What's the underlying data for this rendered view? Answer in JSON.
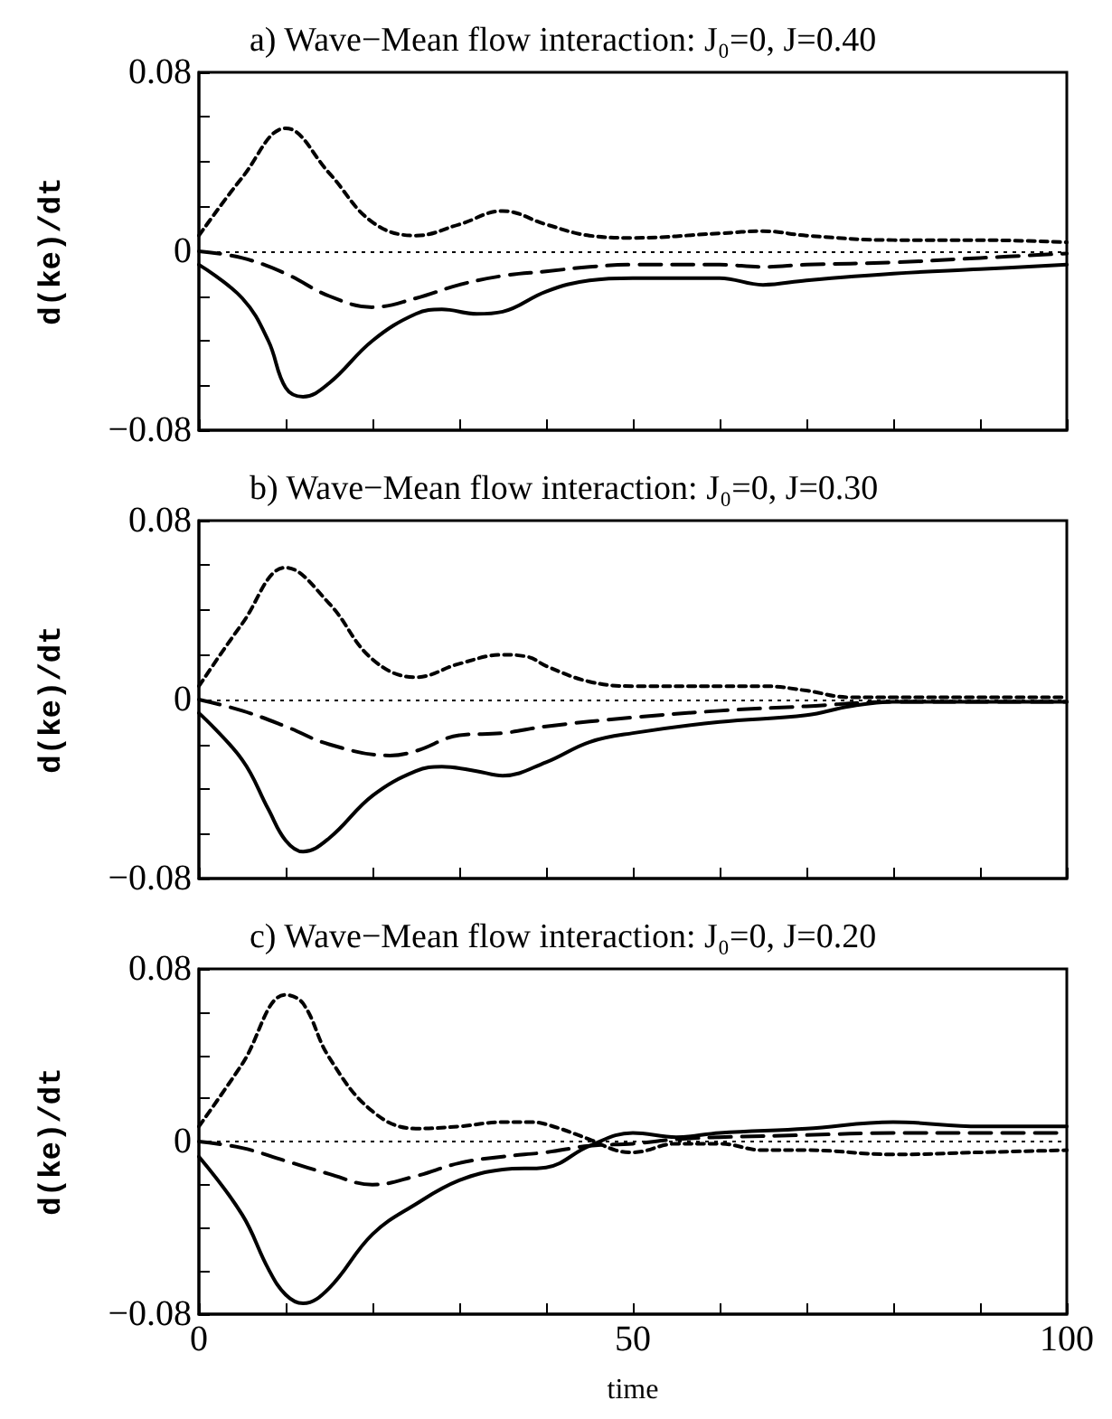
{
  "chart_data": [
    {
      "type": "line",
      "title": "a) Wave−Mean flow interaction: J₀=0, J=0.40",
      "ylabel": "d(ke)/dt",
      "tick_labels": "y",
      "xlim": [
        0,
        100
      ],
      "ylim": [
        -0.08,
        0.08
      ],
      "xticks": [
        {
          "value": 0,
          "label": null
        },
        {
          "value": 10,
          "label": null
        },
        {
          "value": 20,
          "label": null
        },
        {
          "value": 30,
          "label": null
        },
        {
          "value": 40,
          "label": null
        },
        {
          "value": 50,
          "label": null
        },
        {
          "value": 60,
          "label": null
        },
        {
          "value": 70,
          "label": null
        },
        {
          "value": 80,
          "label": null
        },
        {
          "value": 90,
          "label": null
        },
        {
          "value": 100,
          "label": null
        }
      ],
      "yticks": [
        -0.08,
        {
          "value": -0.06,
          "label": null
        },
        {
          "value": -0.04,
          "label": null
        },
        {
          "value": -0.02,
          "label": null
        },
        0,
        {
          "value": 0.02,
          "label": null
        },
        {
          "value": 0.04,
          "label": null
        },
        {
          "value": 0.06,
          "label": null
        },
        0.08
      ],
      "grid": false,
      "marker": "none",
      "ref_lines": [
        {
          "axis": "y",
          "value": 0,
          "color": "#000000",
          "line_style": "dotted"
        }
      ],
      "series": [
        {
          "color": "#000000",
          "line_style": "solid",
          "x": [
            0,
            5,
            8,
            10,
            12,
            15,
            20,
            25,
            28,
            32,
            35,
            40,
            45,
            50,
            60,
            65,
            70,
            80,
            90,
            100
          ],
          "values": [
            -0.006,
            -0.021,
            -0.04,
            -0.061,
            -0.065,
            -0.059,
            -0.04,
            -0.028,
            -0.026,
            -0.028,
            -0.027,
            -0.018,
            -0.013,
            -0.012,
            -0.012,
            -0.015,
            -0.013,
            -0.01,
            -0.008,
            -0.006
          ]
        },
        {
          "color": "#000000",
          "line_style": "dashed",
          "x": [
            0,
            5,
            10,
            15,
            20,
            25,
            30,
            35,
            40,
            45,
            50,
            60,
            65,
            70,
            80,
            90,
            100
          ],
          "values": [
            0,
            -0.003,
            -0.01,
            -0.02,
            -0.025,
            -0.021,
            -0.015,
            -0.011,
            -0.009,
            -0.007,
            -0.006,
            -0.006,
            -0.007,
            -0.006,
            -0.005,
            -0.003,
            -0.001
          ]
        },
        {
          "color": "#000000",
          "line_style": "dotted",
          "x": [
            0,
            5,
            10,
            15,
            20,
            25,
            30,
            35,
            40,
            45,
            50,
            60,
            65,
            70,
            80,
            90,
            100
          ],
          "values": [
            0.007,
            0.033,
            0.055,
            0.035,
            0.013,
            0.007,
            0.012,
            0.018,
            0.012,
            0.007,
            0.006,
            0.008,
            0.009,
            0.007,
            0.005,
            0.005,
            0.004
          ]
        }
      ]
    },
    {
      "type": "line",
      "title": "b) Wave−Mean flow interaction: J₀=0, J=0.30",
      "ylabel": "d(ke)/dt",
      "tick_labels": "y",
      "xlim": [
        0,
        100
      ],
      "ylim": [
        -0.08,
        0.08
      ],
      "xticks": [
        {
          "value": 0,
          "label": null
        },
        {
          "value": 10,
          "label": null
        },
        {
          "value": 20,
          "label": null
        },
        {
          "value": 30,
          "label": null
        },
        {
          "value": 40,
          "label": null
        },
        {
          "value": 50,
          "label": null
        },
        {
          "value": 60,
          "label": null
        },
        {
          "value": 70,
          "label": null
        },
        {
          "value": 80,
          "label": null
        },
        {
          "value": 90,
          "label": null
        },
        {
          "value": 100,
          "label": null
        }
      ],
      "yticks": [
        -0.08,
        {
          "value": -0.06,
          "label": null
        },
        {
          "value": -0.04,
          "label": null
        },
        {
          "value": -0.02,
          "label": null
        },
        0,
        {
          "value": 0.02,
          "label": null
        },
        {
          "value": 0.04,
          "label": null
        },
        {
          "value": 0.06,
          "label": null
        },
        0.08
      ],
      "grid": false,
      "marker": "none",
      "ref_lines": [
        {
          "axis": "y",
          "value": 0,
          "color": "#000000",
          "line_style": "dotted"
        }
      ],
      "series": [
        {
          "color": "#000000",
          "line_style": "solid",
          "x": [
            0,
            5,
            8,
            10,
            12,
            15,
            20,
            25,
            28,
            32,
            35,
            40,
            45,
            50,
            60,
            70,
            75,
            80,
            90,
            100
          ],
          "values": [
            -0.006,
            -0.027,
            -0.049,
            -0.063,
            -0.068,
            -0.062,
            -0.043,
            -0.032,
            -0.03,
            -0.032,
            -0.034,
            -0.028,
            -0.019,
            -0.015,
            -0.01,
            -0.007,
            -0.003,
            -0.001,
            -0.001,
            -0.001
          ]
        },
        {
          "color": "#000000",
          "line_style": "dashed",
          "x": [
            0,
            5,
            10,
            15,
            22,
            25,
            30,
            35,
            40,
            50,
            60,
            70,
            80,
            90,
            100
          ],
          "values": [
            0,
            -0.005,
            -0.012,
            -0.02,
            -0.025,
            -0.023,
            -0.016,
            -0.015,
            -0.012,
            -0.008,
            -0.005,
            -0.003,
            -0.001,
            -0.001,
            -0.001
          ]
        },
        {
          "color": "#000000",
          "line_style": "dotted",
          "x": [
            0,
            5,
            10,
            15,
            20,
            25,
            30,
            35,
            38,
            40,
            45,
            50,
            60,
            65,
            70,
            75,
            80,
            90,
            100
          ],
          "values": [
            0.006,
            0.034,
            0.059,
            0.043,
            0.018,
            0.01,
            0.016,
            0.02,
            0.019,
            0.015,
            0.008,
            0.006,
            0.006,
            0.006,
            0.004,
            0.001,
            0.001,
            0.001,
            0.001
          ]
        }
      ]
    },
    {
      "type": "line",
      "title": "c) Wave−Mean flow interaction: J₀=0, J=0.20",
      "xlabel": "time",
      "ylabel": "d(ke)/dt",
      "xlim": [
        0,
        100
      ],
      "ylim": [
        -0.08,
        0.08
      ],
      "xticks": [
        0,
        {
          "value": 10,
          "label": null
        },
        {
          "value": 20,
          "label": null
        },
        {
          "value": 30,
          "label": null
        },
        {
          "value": 40,
          "label": null
        },
        50,
        {
          "value": 60,
          "label": null
        },
        {
          "value": 70,
          "label": null
        },
        {
          "value": 80,
          "label": null
        },
        {
          "value": 90,
          "label": null
        },
        100
      ],
      "yticks": [
        -0.08,
        {
          "value": -0.06,
          "label": null
        },
        {
          "value": -0.04,
          "label": null
        },
        {
          "value": -0.02,
          "label": null
        },
        0,
        {
          "value": 0.02,
          "label": null
        },
        {
          "value": 0.04,
          "label": null
        },
        {
          "value": 0.06,
          "label": null
        },
        0.08
      ],
      "grid": false,
      "marker": "none",
      "ref_lines": [
        {
          "axis": "y",
          "value": 0,
          "color": "#000000",
          "line_style": "dotted"
        }
      ],
      "series": [
        {
          "color": "#000000",
          "line_style": "solid",
          "x": [
            0,
            5,
            8,
            10,
            12,
            15,
            20,
            25,
            30,
            35,
            40,
            45,
            50,
            55,
            60,
            70,
            80,
            90,
            100
          ],
          "values": [
            -0.007,
            -0.034,
            -0.059,
            -0.071,
            -0.075,
            -0.068,
            -0.043,
            -0.029,
            -0.018,
            -0.013,
            -0.012,
            -0.002,
            0.004,
            0.002,
            0.004,
            0.006,
            0.009,
            0.007,
            0.007
          ]
        },
        {
          "color": "#000000",
          "line_style": "dashed",
          "x": [
            0,
            5,
            10,
            15,
            20,
            25,
            30,
            35,
            40,
            45,
            50,
            55,
            60,
            70,
            80,
            90,
            100
          ],
          "values": [
            0,
            -0.003,
            -0.009,
            -0.015,
            -0.02,
            -0.016,
            -0.01,
            -0.007,
            -0.005,
            -0.002,
            -0.001,
            0.001,
            0.002,
            0.003,
            0.004,
            0.004,
            0.004
          ]
        },
        {
          "color": "#000000",
          "line_style": "dotted",
          "x": [
            0,
            5,
            10,
            12,
            15,
            20,
            25,
            30,
            35,
            38,
            40,
            45,
            48,
            50,
            55,
            60,
            65,
            70,
            80,
            90,
            100
          ],
          "values": [
            0.007,
            0.036,
            0.068,
            0.064,
            0.039,
            0.014,
            0.006,
            0.007,
            0.009,
            0.009,
            0.008,
            0.001,
            -0.004,
            -0.005,
            -0.001,
            -0.001,
            -0.004,
            -0.004,
            -0.006,
            -0.005,
            -0.004
          ]
        }
      ]
    }
  ]
}
